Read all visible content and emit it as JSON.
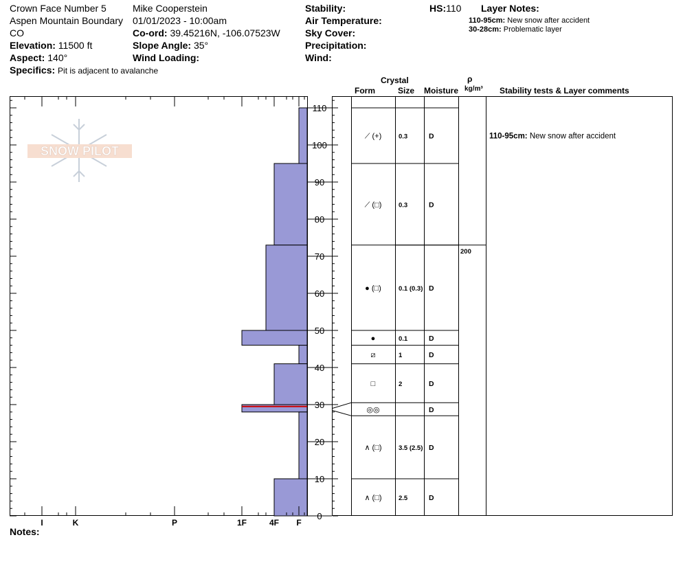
{
  "header": {
    "title": "Crown Face Number 5",
    "location": "Aspen Mountain Boundary",
    "state": "CO",
    "elevation_label": "Elevation:",
    "elevation_value": "11500 ft",
    "aspect_label": "Aspect:",
    "aspect_value": "140°",
    "specifics_label": "Specifics:",
    "specifics_value": "Pit is adjacent to avalanche",
    "observer": "Mike Cooperstein",
    "datetime": "01/01/2023 - 10:00am",
    "coord_label": "Co-ord:",
    "coord_value": "39.45216N, -106.07523W",
    "slope_label": "Slope Angle:",
    "slope_value": "35°",
    "wind_loading_label": "Wind Loading:",
    "stability_label": "Stability:",
    "air_temp_label": "Air Temperature:",
    "sky_cover_label": "Sky Cover:",
    "precip_label": "Precipitation:",
    "wind_label": "Wind:",
    "hs_label": "HS:",
    "hs_value": "110",
    "layer_notes_label": "Layer Notes:",
    "layer_notes": [
      {
        "range": "110-95cm:",
        "text": "New snow after accident"
      },
      {
        "range": "30-28cm:",
        "text": "Problematic layer"
      }
    ]
  },
  "logo_text": "SNOW PILOT",
  "notes_label": "Notes:",
  "columns": {
    "crystal": "Crystal",
    "form": "Form",
    "size": "Size",
    "moisture": "Moisture",
    "rho": "ρ",
    "density_unit": "kg/m³",
    "stability": "Stability tests & Layer comments"
  },
  "hardness_ticks": [
    "I",
    "K",
    "P",
    "1F",
    "4F",
    "F"
  ],
  "chart_data": {
    "type": "bar",
    "title": "",
    "xlabel": "",
    "ylabel": "",
    "x_scale": "hand hardness",
    "ylim": [
      0,
      113
    ],
    "yticks": [
      0,
      10,
      20,
      30,
      40,
      50,
      60,
      70,
      80,
      90,
      100,
      110
    ],
    "hardness_profile": [
      {
        "top": 110,
        "bottom": 95,
        "hardness": "F"
      },
      {
        "top": 95,
        "bottom": 73,
        "hardness": "4F"
      },
      {
        "top": 73,
        "bottom": 50,
        "hardness": "4F+"
      },
      {
        "top": 50,
        "bottom": 46,
        "hardness": "1F"
      },
      {
        "top": 46,
        "bottom": 41,
        "hardness": "F"
      },
      {
        "top": 41,
        "bottom": 30,
        "hardness": "4F"
      },
      {
        "top": 30,
        "bottom": 28,
        "hardness": "1F"
      },
      {
        "top": 28,
        "bottom": 10,
        "hardness": "F"
      },
      {
        "top": 10,
        "bottom": 0,
        "hardness": "4F"
      }
    ],
    "problem_layer_depth": 29.5,
    "layers": [
      {
        "top": 110,
        "bottom": 95,
        "form": "⟋ (+)",
        "size": "0.3",
        "moisture": "D"
      },
      {
        "top": 95,
        "bottom": 73,
        "form": "⟋ (□)",
        "size": "0.3",
        "moisture": "D"
      },
      {
        "top": 73,
        "bottom": 50,
        "form": "● (□)",
        "size": "0.1 (0.3)",
        "moisture": "D"
      },
      {
        "top": 50,
        "bottom": 46,
        "form": "●",
        "size": "0.1",
        "moisture": "D"
      },
      {
        "top": 46,
        "bottom": 41,
        "form": "⧄",
        "size": "1",
        "moisture": "D"
      },
      {
        "top": 41,
        "bottom": 30.5,
        "form": "□",
        "size": "2",
        "moisture": "D"
      },
      {
        "top": 30.5,
        "bottom": 27,
        "form": "◎◎",
        "size": "",
        "moisture": "D"
      },
      {
        "top": 27,
        "bottom": 10,
        "form": "∧ (□)",
        "size": "3.5 (2.5)",
        "moisture": "D"
      },
      {
        "top": 10,
        "bottom": 0,
        "form": "∧ (□)",
        "size": "2.5",
        "moisture": "D"
      }
    ],
    "density": [
      {
        "depth": 73,
        "value": "200"
      }
    ],
    "comments": [
      {
        "depth": 102.5,
        "range": "110-95cm:",
        "text": "New snow after accident"
      }
    ]
  },
  "colors": {
    "bar_fill": "#9999D6",
    "problem_line": "#CC0000"
  }
}
